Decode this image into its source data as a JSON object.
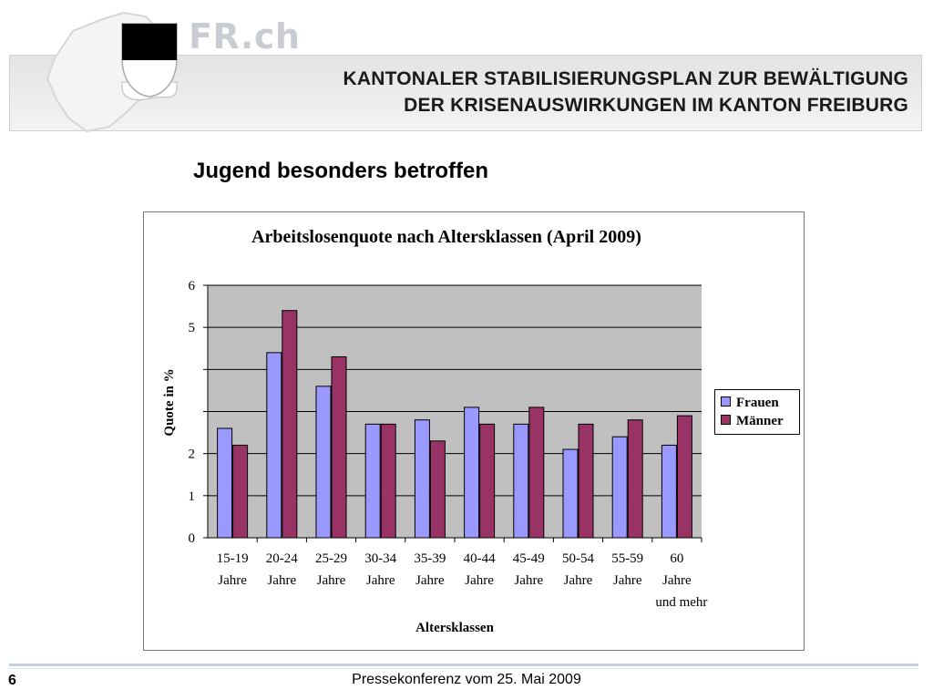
{
  "brand": {
    "text": "FR.ch",
    "colors": {
      "shield_top": "#000000",
      "shield_bottom": "#ffffff",
      "brand_text": "#c9cdd3"
    }
  },
  "header": {
    "title_line1": "KANTONALER STABILISIERUNGSPLAN ZUR BEWÄLTIGUNG",
    "title_line2": "DER KRISENAUSWIRKUNGEN IM KANTON FREIBURG"
  },
  "slide": {
    "heading": "Jugend besonders betroffen"
  },
  "chart_data": {
    "type": "bar",
    "title": "Arbeitslosenquote nach Altersklassen (April 2009)",
    "xlabel": "Altersklassen",
    "ylabel": "Quote in %",
    "ylim": [
      0,
      6
    ],
    "yticks": [
      "0",
      "1",
      "2",
      "",
      "",
      "5",
      "6"
    ],
    "grid": true,
    "legend_position": "right",
    "categories": [
      [
        "15-19",
        "Jahre"
      ],
      [
        "20-24",
        "Jahre"
      ],
      [
        "25-29",
        "Jahre"
      ],
      [
        "30-34",
        "Jahre"
      ],
      [
        "35-39",
        "Jahre"
      ],
      [
        "40-44",
        "Jahre"
      ],
      [
        "45-49",
        "Jahre"
      ],
      [
        "50-54",
        "Jahre"
      ],
      [
        "55-59",
        "Jahre"
      ],
      [
        "60",
        "Jahre",
        "und mehr"
      ]
    ],
    "series": [
      {
        "name": "Frauen",
        "color": "#9999ff",
        "values": [
          2.6,
          4.4,
          3.6,
          2.7,
          2.8,
          3.1,
          2.7,
          2.1,
          2.4,
          2.2
        ]
      },
      {
        "name": "Männer",
        "color": "#993366",
        "values": [
          2.2,
          5.4,
          4.3,
          2.7,
          2.3,
          2.7,
          3.1,
          2.7,
          2.8,
          2.9
        ]
      }
    ],
    "plot_background": "#c0c0c0"
  },
  "footer": {
    "page_number": "6",
    "text": "Pressekonferenz vom 25. Mai 2009"
  }
}
